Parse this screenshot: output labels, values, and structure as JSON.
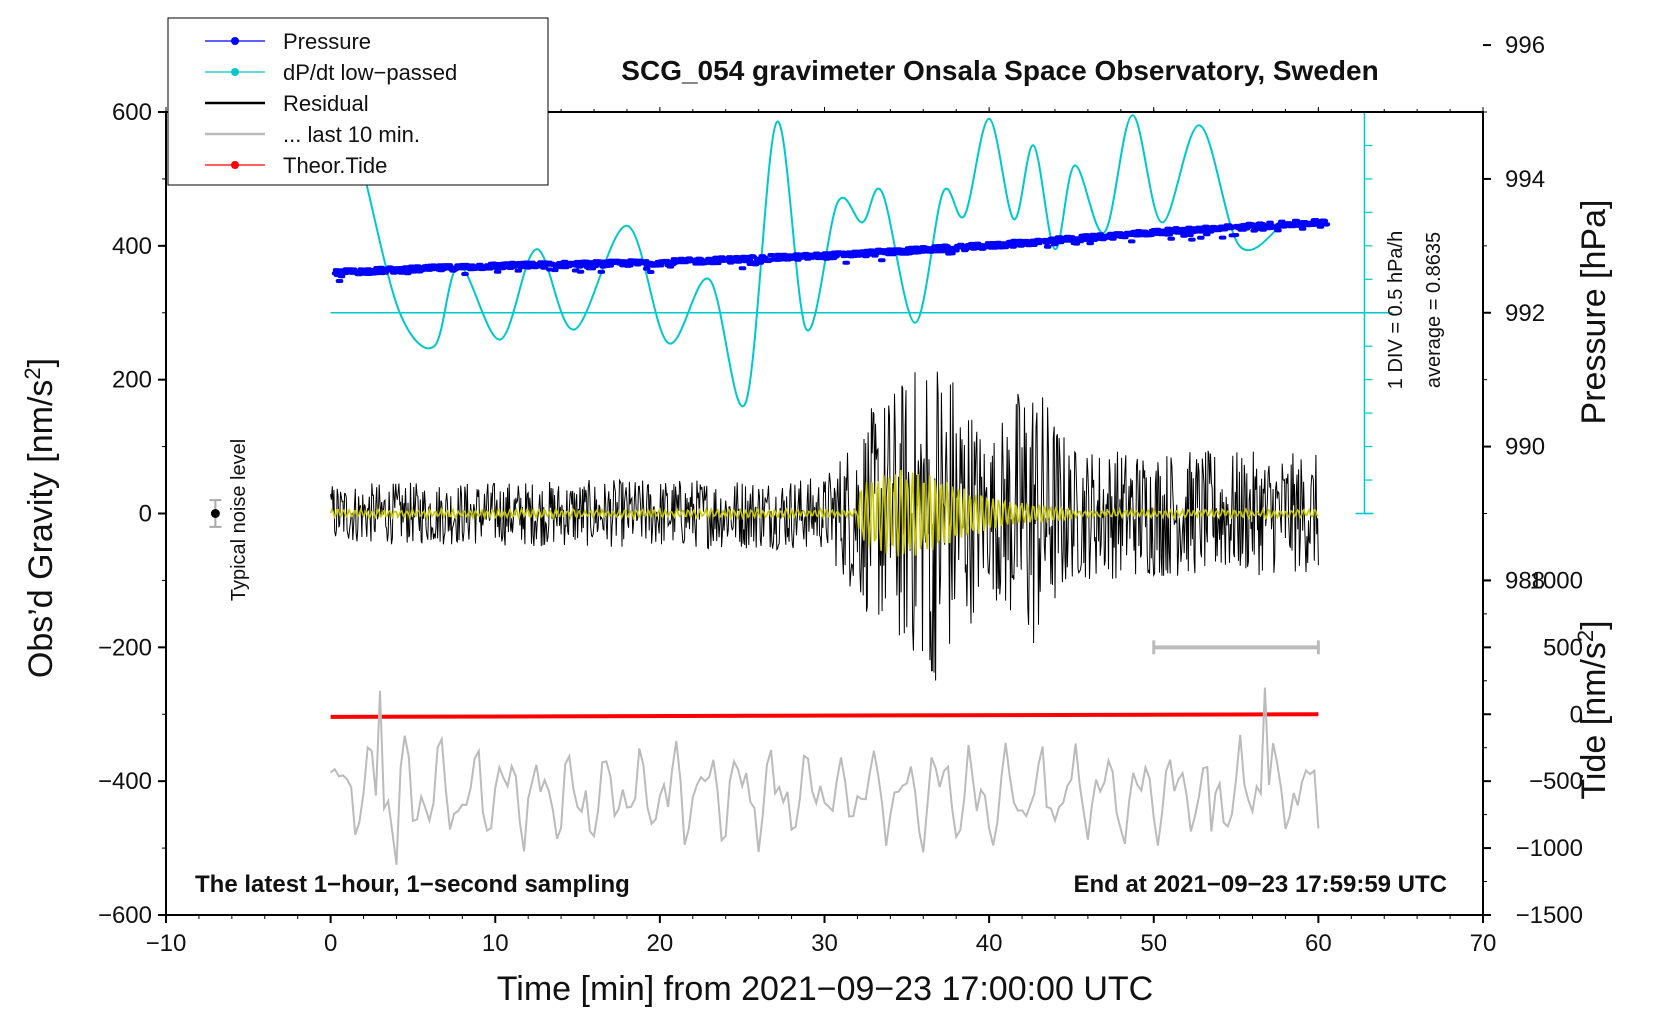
{
  "chart_data": {
    "type": "line",
    "title": "SCG_054 gravimeter Onsala Space Observatory, Sweden",
    "xlabel": "Time [min] from 2021−09−23 17:00:00 UTC",
    "ylabel_left": "Obs’d Gravity [nm/s²]",
    "ylabel_left_main": "Obs’d Gravity [nm/s",
    "ylabel_left_sup": "2",
    "ylabel_left_tail": "]",
    "ylabel_right_pressure": "Pressure [hPa]",
    "ylabel_right_tide": "Tide [nm/s²]",
    "ylabel_right_tide_main": "Tide [nm/s",
    "ylabel_right_tide_sup": "2",
    "ylabel_right_tide_tail": "]",
    "xlim": [
      -10,
      70
    ],
    "ylim": [
      -600,
      600
    ],
    "xticks": [
      -10,
      0,
      10,
      20,
      30,
      40,
      50,
      60,
      70
    ],
    "xtick_labels": [
      "−10",
      "0",
      "10",
      "20",
      "30",
      "40",
      "50",
      "60",
      "70"
    ],
    "yticks": [
      600,
      400,
      200,
      0,
      -200,
      -400,
      -600
    ],
    "ytick_labels": [
      "600",
      "400",
      "200",
      "0",
      "−200",
      "−400",
      "−600"
    ],
    "pressure_axis": {
      "ticks": [
        996,
        994,
        992,
        990,
        988
      ],
      "tick_labels": [
        "996",
        "994",
        "992",
        "990",
        "988"
      ],
      "mapping": {
        "hpa_at_gravity_0": 992,
        "gravity_units_per_hpa": 100,
        "gravity_offset": 300
      }
    },
    "tide_axis": {
      "ticks": [
        1000,
        500,
        0,
        -500,
        -1000,
        -1500
      ],
      "tick_labels": [
        "1000",
        "500",
        "0",
        "−500",
        "−1000",
        "−1500"
      ],
      "mapping": {
        "gravity_offset": -300,
        "tide_units_per_gravity_unit": 5
      }
    },
    "legend": [
      {
        "label": "Pressure",
        "color": "#0000ff",
        "marker": true
      },
      {
        "label": "dP/dt low−passed",
        "color": "#00c8c8",
        "marker": true
      },
      {
        "label": "Residual",
        "color": "#000000",
        "marker": false
      },
      {
        "label": "... last 10 min.",
        "color": "#bbbbbb",
        "marker": false
      },
      {
        "label": "Theor.Tide",
        "color": "#ff0000",
        "marker": true
      }
    ],
    "series": [
      {
        "name": "Pressure",
        "color": "#0000ff",
        "units": "hPa",
        "x": [
          0,
          10,
          20,
          30,
          40,
          50,
          60
        ],
        "y": [
          992.6,
          992.7,
          992.75,
          992.85,
          993.0,
          993.2,
          993.35
        ]
      },
      {
        "name": "dP/dt low−passed",
        "color": "#00c8c8",
        "units": "gravity-axis",
        "x": [
          2.2,
          4.2,
          6.3,
          7.8,
          10.3,
          12.5,
          14.8,
          18,
          20.5,
          23,
          25.2,
          27.1,
          28.9,
          30.8,
          32.3,
          33.5,
          35.5,
          37.2,
          38.5,
          40,
          41.5,
          42.7,
          44,
          45.2,
          47,
          48.7,
          50.5,
          52.8,
          55.2,
          57.8
        ],
        "y": [
          490,
          300,
          250,
          370,
          260,
          395,
          275,
          430,
          255,
          350,
          165,
          585,
          275,
          465,
          435,
          480,
          285,
          480,
          445,
          590,
          440,
          550,
          395,
          520,
          420,
          595,
          435,
          580,
          400,
          432
        ]
      },
      {
        "name": "Residual",
        "color": "#000000",
        "units": "nm/s²",
        "x_range": [
          0,
          60
        ],
        "envelope": [
          [
            0,
            45
          ],
          [
            30,
            55
          ],
          [
            32.5,
            150
          ],
          [
            37,
            260
          ],
          [
            40,
            110
          ],
          [
            42.5,
            225
          ],
          [
            45,
            100
          ],
          [
            60,
            90
          ]
        ],
        "min_value": -235,
        "max_value": 260
      },
      {
        "name": "Residual (low-pass)",
        "color": "#c8c800",
        "units": "nm/s²",
        "x_range": [
          0,
          60
        ],
        "peak_window": [
          32,
          45
        ],
        "max_amplitude": 50
      },
      {
        "name": "... last 10 min.",
        "color": "#bbbbbb",
        "units": "gravity-axis",
        "x_range": [
          0,
          60
        ],
        "min_value": -525,
        "max_value": -265
      },
      {
        "name": "Theor.Tide",
        "color": "#ff0000",
        "units": "nm/s² (tide axis)",
        "x": [
          0,
          60
        ],
        "y": [
          -20,
          0
        ]
      }
    ],
    "annotations": {
      "noise_label": "Typical noise level",
      "noise_x": -7,
      "noise_y": 0,
      "noise_halfwidth": 20,
      "last10_bar": {
        "x0": 50,
        "x1": 60,
        "y": -200
      },
      "pressure_scale_text_1": "1 DIV = 0.5 hPa/h",
      "pressure_scale_text_2": "average = 0.8635",
      "footer_left": "The latest 1−hour, 1−second sampling",
      "footer_right": "End at 2021−09−23 17:59:59 UTC"
    }
  }
}
